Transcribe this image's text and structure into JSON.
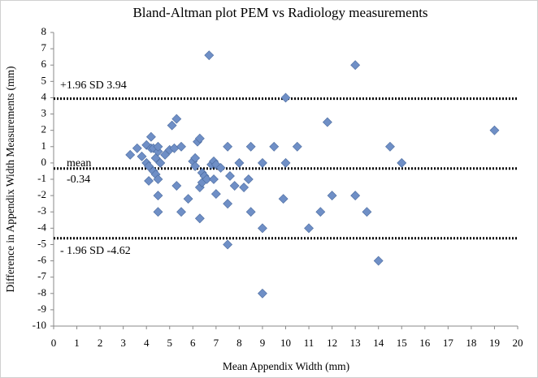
{
  "chart_data": {
    "type": "scatter",
    "title": "Bland-Altman plot PEM vs Radiology measurements",
    "x_label": "Mean Appendix Width (mm)",
    "y_label": "Difference in Appendix Width Measurements (mm)",
    "color": "#6f8fc6",
    "x": [
      3.3,
      3.6,
      3.8,
      4.0,
      4.0,
      4.1,
      4.1,
      4.2,
      4.2,
      4.3,
      4.3,
      4.4,
      4.4,
      4.5,
      4.5,
      4.5,
      4.5,
      4.5,
      4.6,
      4.8,
      5.0,
      5.1,
      5.2,
      5.3,
      5.3,
      5.5,
      5.5,
      5.8,
      6.0,
      6.1,
      6.1,
      6.2,
      6.3,
      6.3,
      6.3,
      6.4,
      6.4,
      6.5,
      6.6,
      6.7,
      6.8,
      6.9,
      6.9,
      7.0,
      7.0,
      7.2,
      7.5,
      7.5,
      7.5,
      7.6,
      7.8,
      8.0,
      8.2,
      8.4,
      8.5,
      8.5,
      9.0,
      9.0,
      9.0,
      9.5,
      9.9,
      10.0,
      10.0,
      10.5,
      11.0,
      11.5,
      11.8,
      12.0,
      13.0,
      13.0,
      13.5,
      14.0,
      14.5,
      15.0,
      19.0
    ],
    "values": [
      0.5,
      0.9,
      0.4,
      1.1,
      0,
      -0.2,
      -1.1,
      0.9,
      1.6,
      0.9,
      -0.5,
      0.3,
      -0.7,
      0.7,
      1.0,
      -1.0,
      -2.0,
      -3.0,
      0,
      0.5,
      0.8,
      2.3,
      0.9,
      2.7,
      -1.4,
      1.0,
      -3.0,
      -2.2,
      0.1,
      0.3,
      -0.2,
      1.3,
      1.5,
      -1.5,
      -3.4,
      -0.6,
      -1.2,
      -0.8,
      -1.0,
      6.6,
      -0.1,
      -1.0,
      0.1,
      -1.9,
      -0.1,
      -0.3,
      1.0,
      -2.5,
      -5.0,
      -0.8,
      -1.4,
      0,
      -1.5,
      -1.0,
      1.0,
      -3.0,
      0,
      -4.0,
      -8.0,
      1.0,
      -2.2,
      4.0,
      0,
      1.0,
      -4.0,
      -3.0,
      2.5,
      -2.0,
      6.0,
      -2.0,
      -3.0,
      -6.0,
      1.0,
      0,
      2.0
    ],
    "xlim": [
      0,
      20
    ],
    "ylim": [
      -10,
      8
    ],
    "xticks": [
      0,
      1,
      2,
      3,
      4,
      5,
      6,
      7,
      8,
      9,
      10,
      11,
      12,
      13,
      14,
      15,
      16,
      17,
      18,
      19,
      20
    ],
    "yticks": [
      -10,
      -9,
      -8,
      -7,
      -6,
      -5,
      -4,
      -3,
      -2,
      -1,
      0,
      1,
      2,
      3,
      4,
      5,
      6,
      7,
      8
    ],
    "reference_lines": [
      {
        "value": 3.94,
        "label_lines": [
          "+1.96 SD 3.94"
        ],
        "label_side": "above"
      },
      {
        "value": -0.34,
        "label_lines": [
          "mean",
          "-0.34"
        ],
        "label_side": "middle"
      },
      {
        "value": -4.62,
        "label_lines": [
          "- 1.96 SD -4.62"
        ],
        "label_side": "below"
      }
    ]
  }
}
